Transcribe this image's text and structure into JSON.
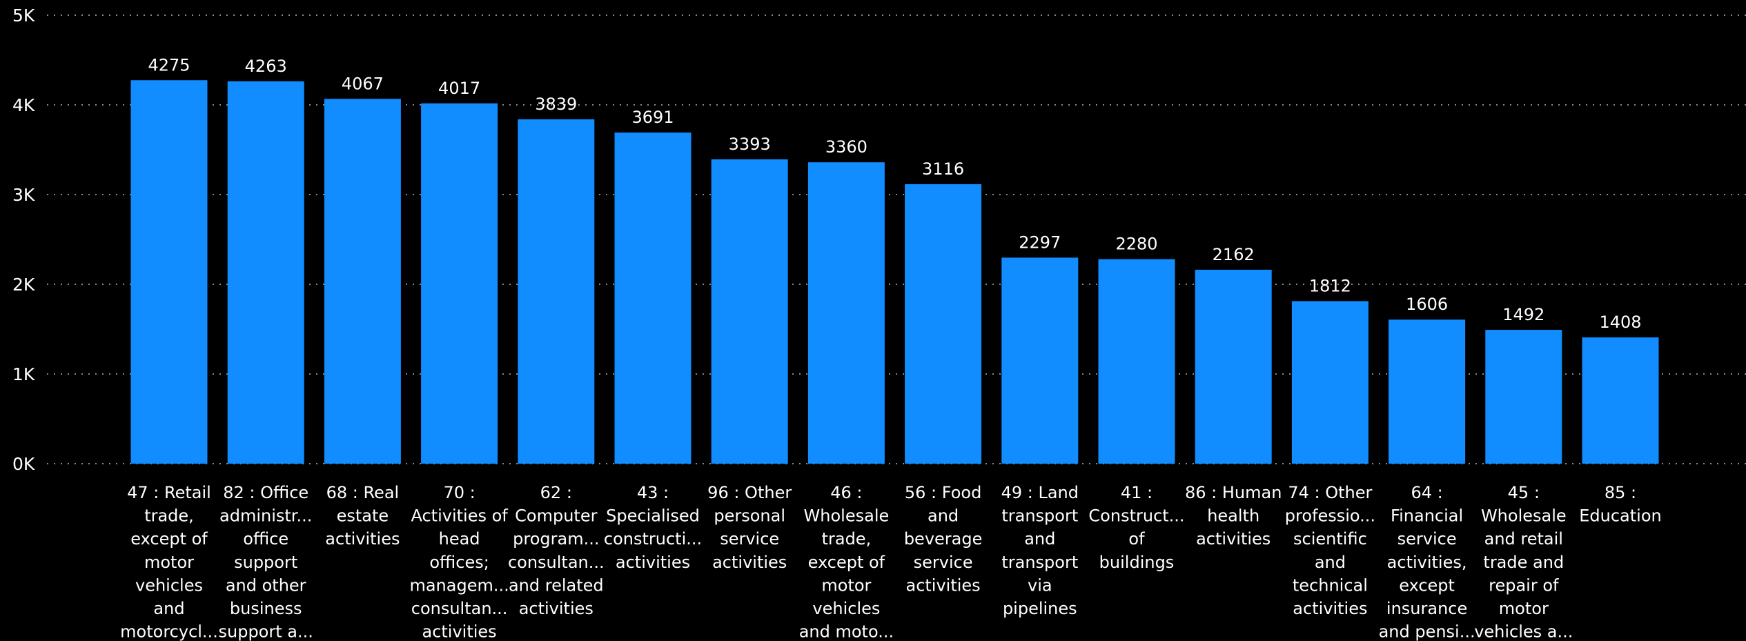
{
  "chart_data": {
    "type": "bar",
    "title": "",
    "xlabel": "",
    "ylabel": "",
    "ylim": [
      0,
      5000
    ],
    "y_ticks": [
      {
        "value": 0,
        "label": "0K"
      },
      {
        "value": 1000,
        "label": "1K"
      },
      {
        "value": 2000,
        "label": "2K"
      },
      {
        "value": 3000,
        "label": "3K"
      },
      {
        "value": 4000,
        "label": "4K"
      },
      {
        "value": 5000,
        "label": "5K"
      }
    ],
    "grid": true,
    "bar_color": "#118DFF",
    "categories": [
      [
        "47 : Retail",
        "trade,",
        "except of",
        "motor",
        "vehicles",
        "and",
        "motorcycl..."
      ],
      [
        "82 : Office",
        "administr...",
        "office",
        "support",
        "and other",
        "business",
        "support a..."
      ],
      [
        "68 : Real",
        "estate",
        "activities"
      ],
      [
        "70 :",
        "Activities of",
        "head",
        "offices;",
        "managem...",
        "consultan...",
        "activities"
      ],
      [
        "62 :",
        "Computer",
        "program...",
        "consultan...",
        "and related",
        "activities"
      ],
      [
        "43 :",
        "Specialised",
        "constructi...",
        "activities"
      ],
      [
        "96 : Other",
        "personal",
        "service",
        "activities"
      ],
      [
        "46 :",
        "Wholesale",
        "trade,",
        "except of",
        "motor",
        "vehicles",
        "and moto..."
      ],
      [
        "56 : Food",
        "and",
        "beverage",
        "service",
        "activities"
      ],
      [
        "49 : Land",
        "transport",
        "and",
        "transport",
        "via",
        "pipelines"
      ],
      [
        "41 :",
        "Construct...",
        "of",
        "buildings"
      ],
      [
        "86 : Human",
        "health",
        "activities"
      ],
      [
        "74 : Other",
        "professio...",
        "scientific",
        "and",
        "technical",
        "activities"
      ],
      [
        "64 :",
        "Financial",
        "service",
        "activities,",
        "except",
        "insurance",
        "and pensi..."
      ],
      [
        "45 :",
        "Wholesale",
        "and retail",
        "trade and",
        "repair of",
        "motor",
        "vehicles a..."
      ],
      [
        "85 :",
        "Education"
      ]
    ],
    "values": [
      4275,
      4263,
      4067,
      4017,
      3839,
      3691,
      3393,
      3360,
      3116,
      2297,
      2280,
      2162,
      1812,
      1606,
      1492,
      1408
    ]
  }
}
